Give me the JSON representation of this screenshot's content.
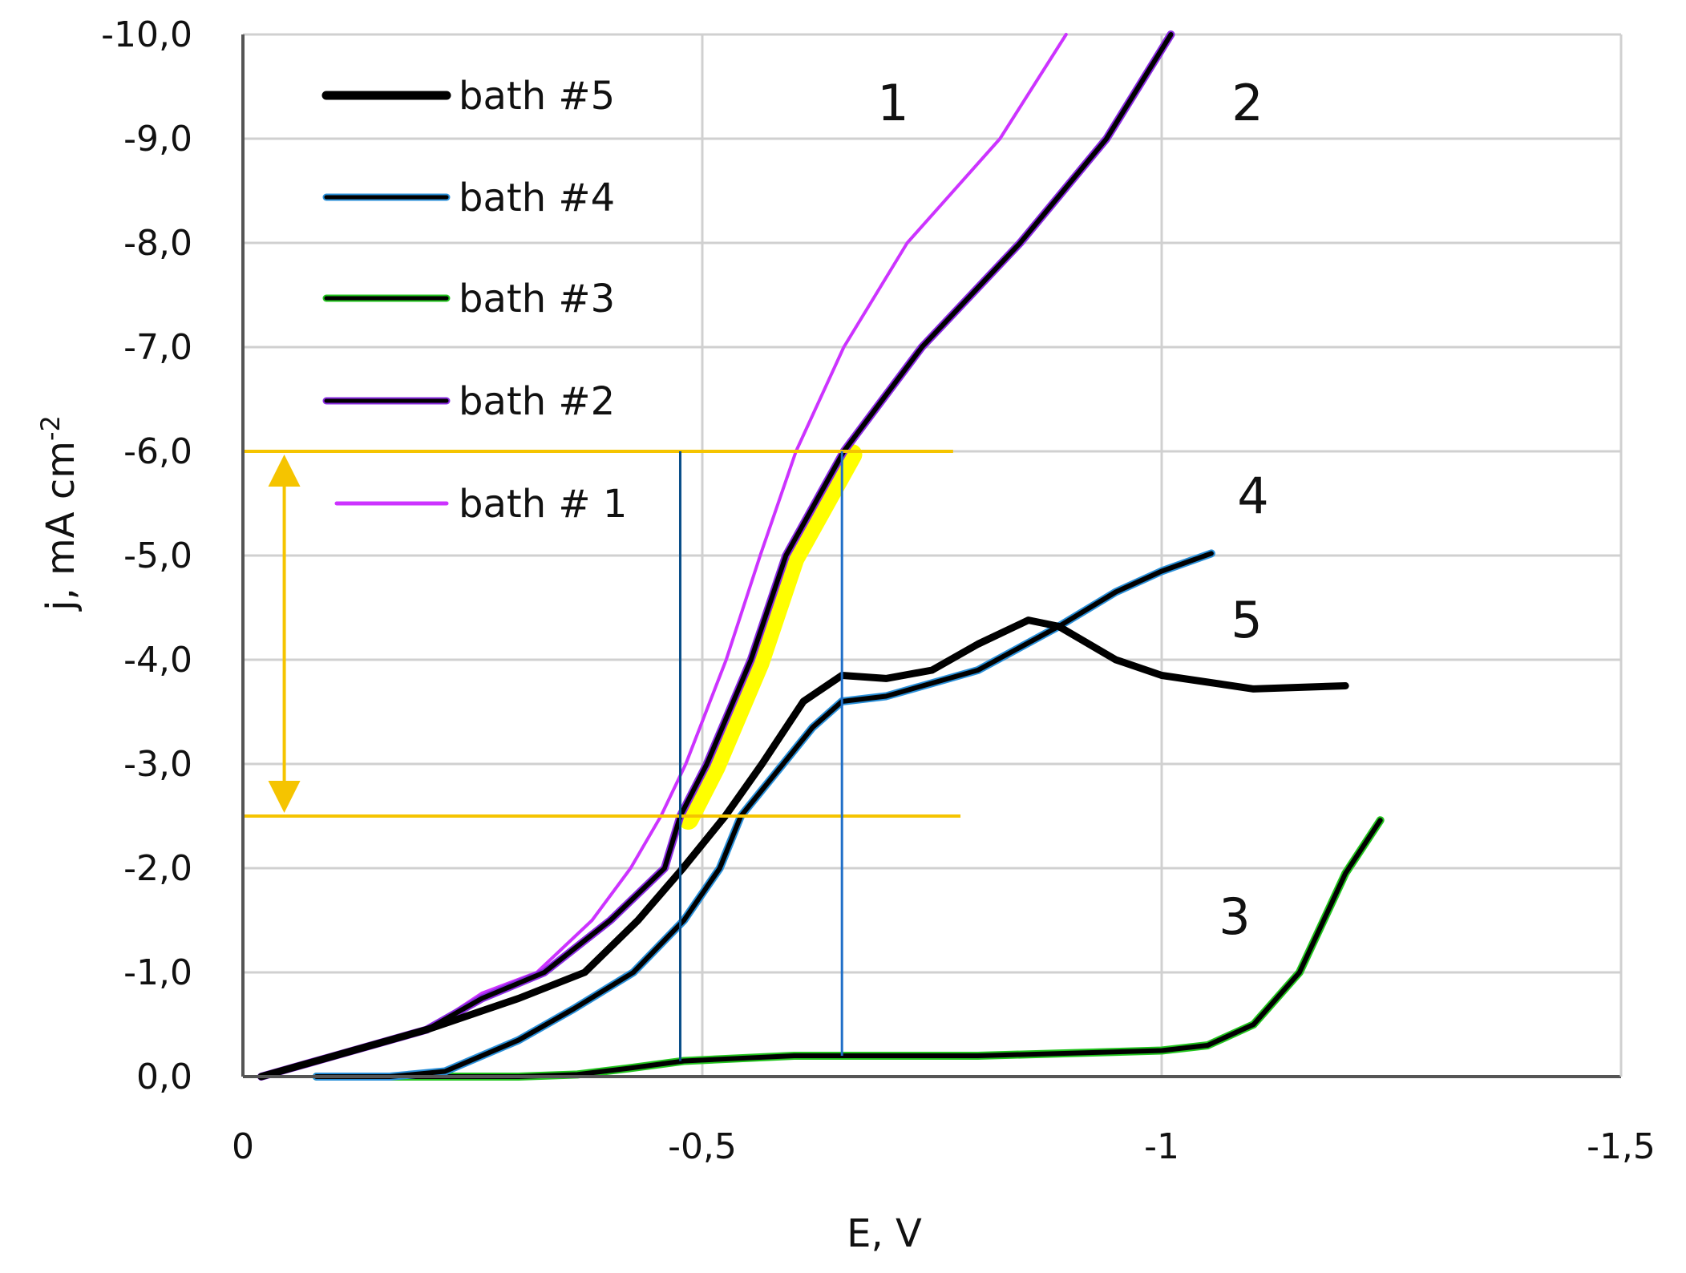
{
  "chart_data": {
    "type": "line",
    "title": "",
    "xlabel": "E, V",
    "ylabel": "j, mA cm",
    "ylabel_superscript": "-2",
    "xlim": [
      0,
      -1.5
    ],
    "ylim": [
      0,
      -10
    ],
    "grid": true,
    "legend_position": "upper-left-inside",
    "x_ticks": [
      "0",
      "-0,5",
      "-1",
      "-1,5"
    ],
    "x_tick_values": [
      0,
      -0.5,
      -1,
      -1.5
    ],
    "y_ticks": [
      "0,0",
      "-1,0",
      "-2,0",
      "-3,0",
      "-4,0",
      "-5,0",
      "-6,0",
      "-7,0",
      "-8,0",
      "-9,0",
      "-10,0"
    ],
    "y_tick_values": [
      0,
      -1,
      -2,
      -3,
      -4,
      -5,
      -6,
      -7,
      -8,
      -9,
      -10
    ],
    "series": [
      {
        "name": "bath #5",
        "curve_label": "5",
        "color": "#000000",
        "edge_color": "#000000",
        "x": [
          -0.02,
          -0.1,
          -0.2,
          -0.3,
          -0.372,
          -0.43,
          -0.479,
          -0.525,
          -0.565,
          -0.61,
          -0.652,
          -0.7,
          -0.75,
          -0.8,
          -0.855,
          -0.888,
          -0.95,
          -1.0,
          -1.1,
          -1.2
        ],
        "y": [
          0,
          -0.2,
          -0.45,
          -0.75,
          -1.0,
          -1.5,
          -2.0,
          -2.5,
          -3.0,
          -3.6,
          -3.85,
          -3.82,
          -3.9,
          -4.15,
          -4.38,
          -4.32,
          -4.0,
          -3.85,
          -3.72,
          -3.75
        ]
      },
      {
        "name": "bath #4",
        "curve_label": "4",
        "color": "#000000",
        "edge_color": "#2a8fd8",
        "x": [
          -0.08,
          -0.16,
          -0.22,
          -0.3,
          -0.36,
          -0.425,
          -0.48,
          -0.519,
          -0.542,
          -0.588,
          -0.62,
          -0.652,
          -0.7,
          -0.8,
          -0.888,
          -0.95,
          -1.0,
          -1.054
        ],
        "y": [
          0,
          0,
          -0.05,
          -0.35,
          -0.65,
          -1.0,
          -1.5,
          -2.0,
          -2.5,
          -3.0,
          -3.35,
          -3.6,
          -3.65,
          -3.9,
          -4.32,
          -4.65,
          -4.85,
          -5.02
        ]
      },
      {
        "name": "bath #3",
        "curve_label": "3",
        "color": "#000000",
        "edge_color": "#22c41e",
        "x": [
          -0.08,
          -0.3,
          -0.364,
          -0.42,
          -0.48,
          -0.6,
          -0.8,
          -1.0,
          -1.05,
          -1.1,
          -1.15,
          -1.2,
          -1.238
        ],
        "y": [
          0,
          0,
          -0.02,
          -0.08,
          -0.15,
          -0.2,
          -0.2,
          -0.25,
          -0.3,
          -0.5,
          -1.0,
          -1.95,
          -2.46
        ]
      },
      {
        "name": "bath #2",
        "curve_label": "2",
        "color": "#000000",
        "edge_color": "#8a2be2",
        "x": [
          -0.02,
          -0.1,
          -0.2,
          -0.26,
          -0.328,
          -0.4,
          -0.459,
          -0.476,
          -0.505,
          -0.553,
          -0.591,
          -0.654,
          -0.739,
          -0.846,
          -0.94,
          -1.01
        ],
        "y": [
          0,
          -0.2,
          -0.45,
          -0.75,
          -1.0,
          -1.5,
          -2.0,
          -2.5,
          -3.0,
          -4.0,
          -5.0,
          -6.0,
          -7.0,
          -8.0,
          -9.0,
          -10.0
        ]
      },
      {
        "name": "bath # 1",
        "curve_label": "1",
        "color": "#cc33ff",
        "edge_color": "#cc33ff",
        "x": [
          -0.02,
          -0.1,
          -0.2,
          -0.26,
          -0.32,
          -0.38,
          -0.422,
          -0.455,
          -0.482,
          -0.526,
          -0.563,
          -0.602,
          -0.654,
          -0.723,
          -0.824,
          -0.896
        ],
        "y": [
          0,
          -0.2,
          -0.45,
          -0.8,
          -1.0,
          -1.5,
          -2.0,
          -2.5,
          -3.0,
          -4.0,
          -5.0,
          -6.0,
          -7.0,
          -8.0,
          -9.0,
          -10.0
        ]
      }
    ],
    "annotations": {
      "horizontal_lines": [
        {
          "y": -6.0,
          "x_from": 0,
          "x_to": -0.773,
          "color": "#f5c400"
        },
        {
          "y": -2.5,
          "x_from": 0,
          "x_to": -0.781,
          "color": "#f5c400"
        }
      ],
      "vertical_lines": [
        {
          "x": -0.476,
          "y_from": -0.15,
          "y_to": -6.0,
          "color": "#0a4f8a"
        },
        {
          "x": -0.652,
          "y_from": -0.2,
          "y_to": -6.0,
          "color": "#1f6fc8"
        }
      ],
      "double_arrow": {
        "x": -0.045,
        "y_from": -6.0,
        "y_to": -2.5,
        "color": "#f5c400"
      },
      "highlight_segment": {
        "series": "bath #2",
        "x_from": -0.476,
        "x_to": -0.654,
        "color": "#ffff00"
      }
    }
  },
  "legend": {
    "items": [
      {
        "label": "bath #5"
      },
      {
        "label": "bath #4"
      },
      {
        "label": "bath #3"
      },
      {
        "label": "bath #2"
      },
      {
        "label": "bath # 1"
      }
    ]
  },
  "curve_labels": [
    "1",
    "2",
    "3",
    "4",
    "5"
  ],
  "axes": {
    "x_title": "E, V",
    "y_title": "j, mA cm",
    "y_title_sup": "-2"
  }
}
